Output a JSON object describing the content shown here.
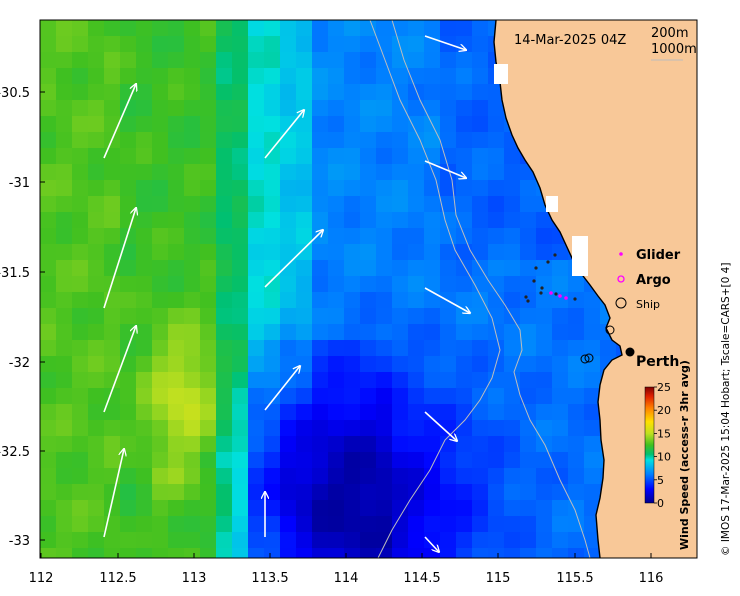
{
  "map": {
    "timestamp": "14-Mar-2025 04Z",
    "depth_contours": [
      "200m",
      "1000m"
    ],
    "x_ticks": [
      "112",
      "112.5",
      "113",
      "113.5",
      "114",
      "114.5",
      "115",
      "115.5",
      "116"
    ],
    "y_ticks": [
      "-30.5",
      "-31",
      "-31.5",
      "-32",
      "-32.5",
      "-33"
    ],
    "legend": {
      "glider": "Glider",
      "argo": "Argo",
      "ship": "Ship"
    },
    "place_label": "Perth",
    "colorbar": {
      "title": "Wind Speed (access-r 3hr avg)",
      "ticks": [
        "0",
        "5",
        "10",
        "15",
        "20",
        "25"
      ],
      "min": 0,
      "max": 25
    },
    "credit": "© IMOS 17-Mar-2025 15:04 Hobart; Tscale=CARS+[0 4]",
    "colors": {
      "land": "#f8c898",
      "arrows": "#ffffff",
      "contour": "#bcbcbc",
      "glider": "#ff00ff"
    }
  }
}
